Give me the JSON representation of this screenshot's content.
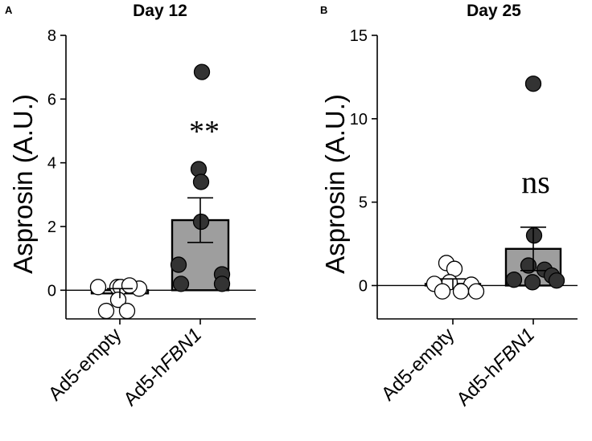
{
  "figure": {
    "panels": [
      {
        "letter": "A",
        "title": "Day 12",
        "ylabel": "Asprosin (A.U.)",
        "yticks": [
          "0",
          "2",
          "4",
          "6",
          "8"
        ],
        "categories": [
          {
            "prefix": "Ad5-empty",
            "italic": ""
          },
          {
            "prefix": "Ad5-h",
            "italic": "FBN1"
          }
        ],
        "significance": "**"
      },
      {
        "letter": "B",
        "title": "Day 25",
        "ylabel": "Asprosin (A.U.)",
        "yticks": [
          "0",
          "5",
          "10",
          "15"
        ],
        "categories": [
          {
            "prefix": "Ad5-empty",
            "italic": ""
          },
          {
            "prefix": "Ad5-h",
            "italic": "FBN1"
          }
        ],
        "significance": "ns"
      }
    ]
  },
  "chart_data": [
    {
      "type": "bar",
      "title": "Day 12",
      "ylabel": "Asprosin (A.U.)",
      "categories": [
        "Ad5-empty",
        "Ad5-hFBN1"
      ],
      "ylim": [
        -0.9,
        8
      ],
      "values": [
        -0.1,
        2.2
      ],
      "error": [
        0.15,
        0.7
      ],
      "bar_colors": [
        "#ffffff",
        "#9e9e9e"
      ],
      "points": [
        [
          0.1,
          0.1,
          0.05,
          0.1,
          0.15,
          -0.3,
          -0.65,
          -0.65
        ],
        [
          6.85,
          3.8,
          3.4,
          2.15,
          0.8,
          0.5,
          0.2,
          0.2
        ]
      ],
      "point_colors": [
        "#ffffff",
        "#333333"
      ],
      "annotation": "**"
    },
    {
      "type": "bar",
      "title": "Day 25",
      "ylabel": "Asprosin (A.U.)",
      "categories": [
        "Ad5-empty",
        "Ad5-hFBN1"
      ],
      "ylim": [
        -2,
        15
      ],
      "values": [
        0.1,
        2.2
      ],
      "error": [
        0.3,
        1.3
      ],
      "bar_colors": [
        "#ffffff",
        "#9e9e9e"
      ],
      "points": [
        [
          1.35,
          1.0,
          0.1,
          0.05,
          0.2,
          -0.35,
          -0.35,
          -0.35
        ],
        [
          12.1,
          3.0,
          1.2,
          0.95,
          0.6,
          0.35,
          0.3,
          0.2
        ]
      ],
      "point_colors": [
        "#ffffff",
        "#333333"
      ],
      "annotation": "ns"
    }
  ]
}
